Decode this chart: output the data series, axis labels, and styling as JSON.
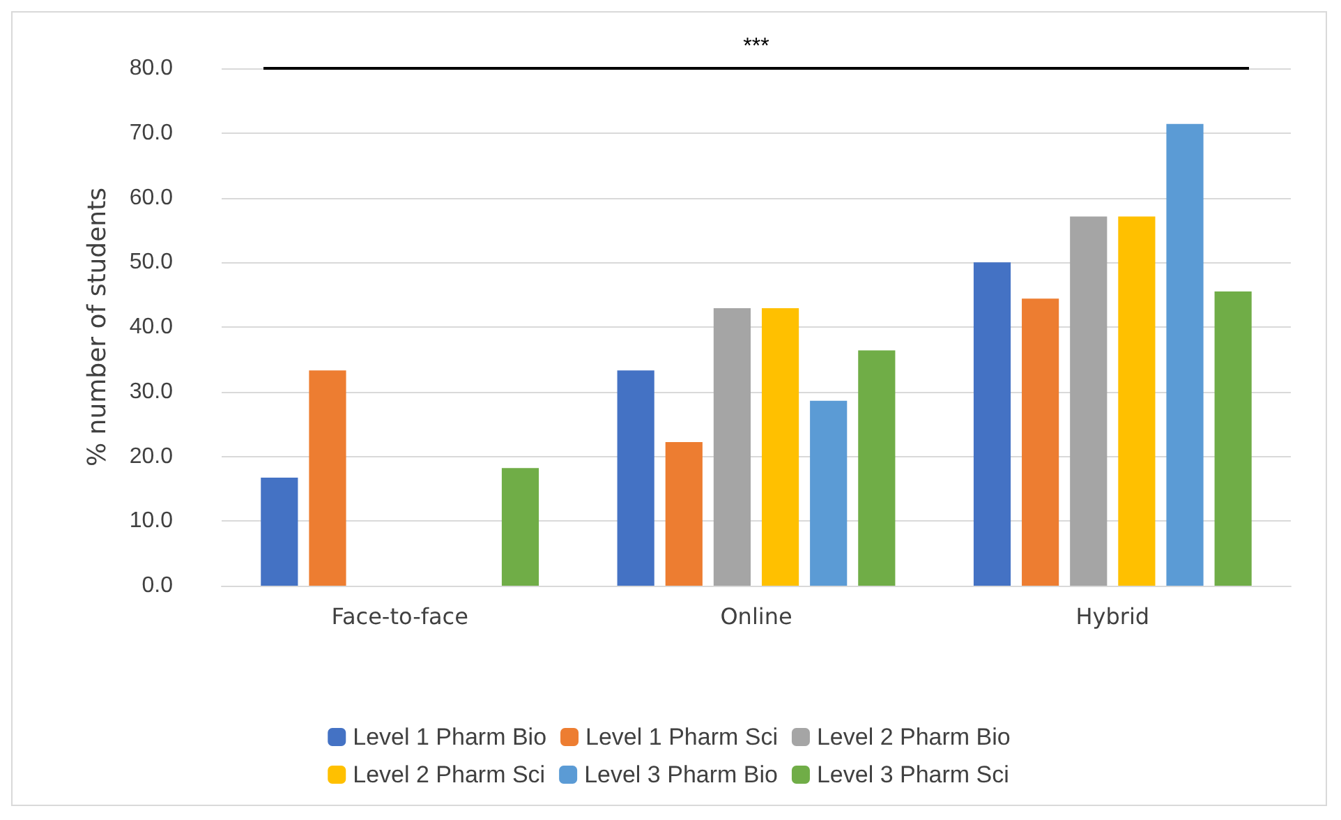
{
  "chart_data": {
    "type": "bar",
    "ylabel": "% number of students",
    "categories": [
      "Face-to-face",
      "Online",
      "Hybrid"
    ],
    "series": [
      {
        "name": "Level 1 Pharm Bio",
        "color": "#4472c4",
        "values": [
          16.7,
          33.3,
          50.0
        ]
      },
      {
        "name": "Level 1 Pharm Sci",
        "color": "#ed7d31",
        "values": [
          33.3,
          22.2,
          44.4
        ]
      },
      {
        "name": "Level 2 Pharm Bio",
        "color": "#a5a5a5",
        "values": [
          0,
          42.9,
          57.1
        ]
      },
      {
        "name": "Level 2 Pharm Sci",
        "color": "#ffc000",
        "values": [
          0,
          42.9,
          57.1
        ]
      },
      {
        "name": "Level 3 Pharm Bio",
        "color": "#5b9bd5",
        "values": [
          0,
          28.6,
          71.4
        ]
      },
      {
        "name": "Level 3 Pharm Sci",
        "color": "#70ad47",
        "values": [
          18.2,
          36.4,
          45.5
        ]
      }
    ],
    "ylim": [
      0,
      80
    ],
    "yticks": [
      {
        "value": 0,
        "label": "0.0"
      },
      {
        "value": 10,
        "label": "10.0"
      },
      {
        "value": 20,
        "label": "20.0"
      },
      {
        "value": 30,
        "label": "30.0"
      },
      {
        "value": 40,
        "label": "40.0"
      },
      {
        "value": 50,
        "label": "50.0"
      },
      {
        "value": 60,
        "label": "60.0"
      },
      {
        "value": 70,
        "label": "70.0"
      },
      {
        "value": 80,
        "label": "80.0"
      }
    ],
    "annotations": [
      "***"
    ],
    "grid": "y",
    "legend": "bottom"
  }
}
